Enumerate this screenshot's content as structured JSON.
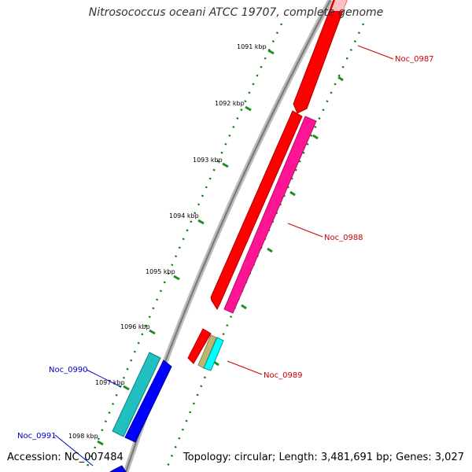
{
  "title": "Nitrosococcus oceani ATCC 19707, complete genome",
  "accession": "Accession: NC_007484",
  "topology": "Topology: circular; Length: 3,481,691 bp; Genes: 3,027",
  "ticks": [
    {
      "label": "1091 kbp"
    },
    {
      "label": "1092 kbp"
    },
    {
      "label": "1093 kbp"
    },
    {
      "label": "1094 kbp"
    },
    {
      "label": "1095 kbp"
    },
    {
      "label": "1096 kbp"
    },
    {
      "label": "1097 kbp"
    },
    {
      "label": "1098 kbp"
    }
  ],
  "genes": [
    {
      "name": "Noc_0987",
      "strand": "+",
      "color": "#ff0000"
    },
    {
      "name": "Noc_0988",
      "strand": "+",
      "color": "#ff1493"
    },
    {
      "name": "Noc_0989",
      "strand": "+",
      "color": "#ff0000"
    },
    {
      "name": "Noc_0990",
      "strand": "-",
      "color": "#20c0c0"
    },
    {
      "name": "Noc_0991",
      "strand": "-",
      "color": "#0000ff"
    }
  ],
  "colors": {
    "forward_label": "#cc0000",
    "reverse_label": "#0000cc",
    "gc_track": "#008000",
    "backbone": "#808080"
  }
}
